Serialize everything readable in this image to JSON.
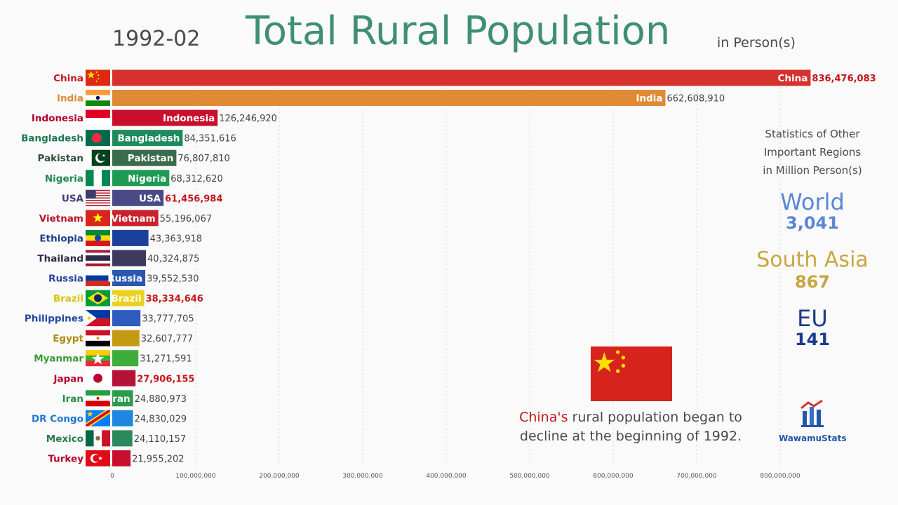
{
  "header": {
    "date": "1992-02",
    "title": "Total Rural Population",
    "unit": "in Person(s)"
  },
  "chart_data": {
    "type": "bar",
    "orientation": "horizontal",
    "title": "Total Rural Population",
    "xlim": [
      0,
      900000000
    ],
    "xticks": [
      0,
      100000000,
      200000000,
      300000000,
      400000000,
      500000000,
      600000000,
      700000000,
      800000000
    ],
    "xtick_labels": [
      "0",
      "100,000,000",
      "200,000,000",
      "300,000,000",
      "400,000,000",
      "500,000,000",
      "600,000,000",
      "700,000,000",
      "800,000,000"
    ],
    "grid": true,
    "bars": [
      {
        "name": "China",
        "value": 836476083,
        "value_label": "836,476,083",
        "color": "#d6312d",
        "label_color": "#c4161c",
        "value_color": "#c4161c",
        "inbar": "China",
        "flag": "china"
      },
      {
        "name": "India",
        "value": 662608910,
        "value_label": "662,608,910",
        "color": "#e08a35",
        "label_color": "#e08a35",
        "value_color": "#444444",
        "inbar": "India",
        "flag": "india"
      },
      {
        "name": "Indonesia",
        "value": 126246920,
        "value_label": "126,246,920",
        "color": "#c8102e",
        "label_color": "#b5002b",
        "value_color": "#444444",
        "inbar": "Indonesia",
        "flag": "indonesia"
      },
      {
        "name": "Bangladesh",
        "value": 84351616,
        "value_label": "84,351,616",
        "color": "#1e8a5e",
        "label_color": "#1e7a50",
        "value_color": "#444444",
        "inbar": "Bangladesh",
        "flag": "bangladesh"
      },
      {
        "name": "Pakistan",
        "value": 76807810,
        "value_label": "76,807,810",
        "color": "#3a6b4c",
        "label_color": "#2f4f3a",
        "value_color": "#444444",
        "inbar": "Pakistan",
        "flag": "pakistan"
      },
      {
        "name": "Nigeria",
        "value": 68312620,
        "value_label": "68,312,620",
        "color": "#1f9a55",
        "label_color": "#1f8a4c",
        "value_color": "#444444",
        "inbar": "Nigeria",
        "flag": "nigeria"
      },
      {
        "name": "USA",
        "value": 61456984,
        "value_label": "61,456,984",
        "color": "#4a4a86",
        "label_color": "#3c3c78",
        "value_color": "#c4161c",
        "inbar": "USA",
        "flag": "usa"
      },
      {
        "name": "Vietnam",
        "value": 55196067,
        "value_label": "55,196,067",
        "color": "#c8232c",
        "label_color": "#b5132a",
        "value_color": "#444444",
        "inbar": "Vietnam",
        "flag": "vietnam"
      },
      {
        "name": "Ethiopia",
        "value": 43363918,
        "value_label": "43,363,918",
        "color": "#1c3f9c",
        "label_color": "#1c3f8c",
        "value_color": "#444444",
        "inbar": "",
        "flag": "ethiopia"
      },
      {
        "name": "Thailand",
        "value": 40324875,
        "value_label": "40,324,875",
        "color": "#3d3a5e",
        "label_color": "#2e2c4a",
        "value_color": "#444444",
        "inbar": "",
        "flag": "thailand"
      },
      {
        "name": "Russia",
        "value": 39552530,
        "value_label": "39,552,530",
        "color": "#2a57b0",
        "label_color": "#22449a",
        "value_color": "#444444",
        "inbar": "Russia",
        "flag": "russia"
      },
      {
        "name": "Brazil",
        "value": 38334646,
        "value_label": "38,334,646",
        "color": "#e8d21c",
        "label_color": "#d9c40e",
        "value_color": "#c4161c",
        "inbar": "Brazil",
        "flag": "brazil"
      },
      {
        "name": "Philippines",
        "value": 33777705,
        "value_label": "33,777,705",
        "color": "#2e5bbd",
        "label_color": "#2448a0",
        "value_color": "#444444",
        "inbar": "",
        "flag": "philippines"
      },
      {
        "name": "Egypt",
        "value": 32607777,
        "value_label": "32,607,777",
        "color": "#c39b12",
        "label_color": "#b08a10",
        "value_color": "#444444",
        "inbar": "",
        "flag": "egypt"
      },
      {
        "name": "Myanmar",
        "value": 31271591,
        "value_label": "31,271,591",
        "color": "#3eae3a",
        "label_color": "#3a9a36",
        "value_color": "#444444",
        "inbar": "",
        "flag": "myanmar"
      },
      {
        "name": "Japan",
        "value": 27906155,
        "value_label": "27,906,155",
        "color": "#b5123a",
        "label_color": "#b5002b",
        "value_color": "#c4161c",
        "inbar": "",
        "flag": "japan"
      },
      {
        "name": "Iran",
        "value": 24880973,
        "value_label": "24,880,973",
        "color": "#2e9a4e",
        "label_color": "#2a8a46",
        "value_color": "#444444",
        "inbar": "Iran",
        "flag": "iran"
      },
      {
        "name": "DR Congo",
        "value": 24830029,
        "value_label": "24,830,029",
        "color": "#1f87e0",
        "label_color": "#1f77d0",
        "value_color": "#444444",
        "inbar": "",
        "flag": "drcongo"
      },
      {
        "name": "Mexico",
        "value": 24110157,
        "value_label": "24,110,157",
        "color": "#2a8a5e",
        "label_color": "#2a7a50",
        "value_color": "#444444",
        "inbar": "",
        "flag": "mexico"
      },
      {
        "name": "Turkey",
        "value": 21955202,
        "value_label": "21,955,202",
        "color": "#c8102e",
        "label_color": "#b5002b",
        "value_color": "#444444",
        "inbar": "",
        "flag": "turkey"
      }
    ]
  },
  "stats": {
    "heading_lines": [
      "Statistics of Other",
      "Important Regions",
      "in Million Person(s)"
    ],
    "regions": [
      {
        "name": "World",
        "value": "3,041",
        "color": "#5b86d6"
      },
      {
        "name": "South Asia",
        "value": "867",
        "color": "#c9a640"
      },
      {
        "name": "EU",
        "value": "141",
        "color": "#1c3a8c"
      }
    ]
  },
  "note": {
    "highlight": "China's",
    "text": " rural population began to decline at the beginning of 1992."
  },
  "logo": {
    "text": "WawamuStats"
  }
}
